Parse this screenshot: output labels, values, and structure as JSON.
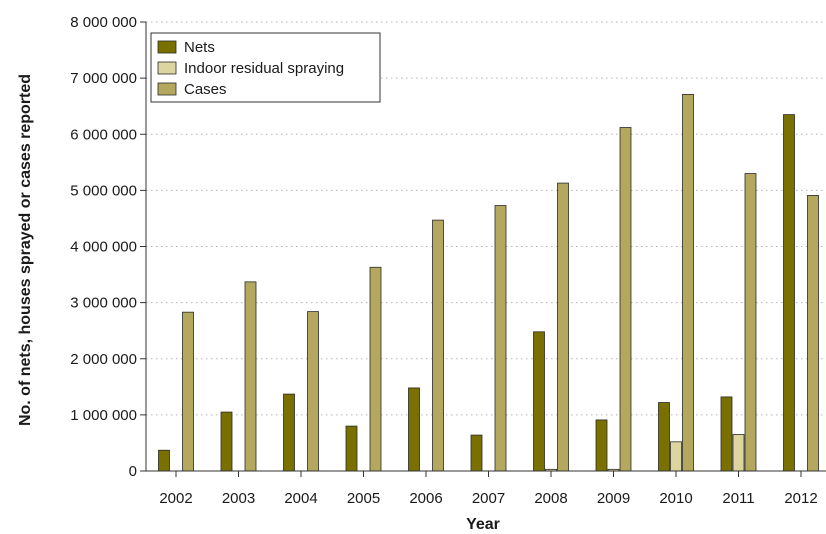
{
  "chart_data": {
    "type": "bar",
    "xlabel": "Year",
    "ylabel": "No. of nets, houses sprayed or cases reported",
    "categories": [
      "2002",
      "2003",
      "2004",
      "2005",
      "2006",
      "2007",
      "2008",
      "2009",
      "2010",
      "2011",
      "2012"
    ],
    "ylim": [
      0,
      8000000
    ],
    "yticks": [
      0,
      1000000,
      2000000,
      3000000,
      4000000,
      5000000,
      6000000,
      7000000,
      8000000
    ],
    "ytick_labels": [
      "0",
      "1 000 000",
      "2 000 000",
      "3 000 000",
      "4 000 000",
      "5 000 000",
      "6 000 000",
      "7 000 000",
      "8 000 000"
    ],
    "grid": "horizontal dotted",
    "legend_position": "top-left",
    "series": [
      {
        "name": "Nets",
        "color": "#7a7000",
        "values": [
          370000,
          1050000,
          1370000,
          800000,
          1480000,
          640000,
          2480000,
          910000,
          1220000,
          1320000,
          6350000
        ]
      },
      {
        "name": "Indoor residual spraying",
        "color": "#dcd5a0",
        "values": [
          0,
          0,
          0,
          0,
          0,
          0,
          30000,
          30000,
          520000,
          650000,
          0
        ]
      },
      {
        "name": "Cases",
        "color": "#b3a85e",
        "values": [
          2830000,
          3370000,
          2840000,
          3630000,
          4470000,
          4730000,
          5130000,
          6120000,
          6710000,
          5300000,
          4910000
        ]
      }
    ]
  }
}
